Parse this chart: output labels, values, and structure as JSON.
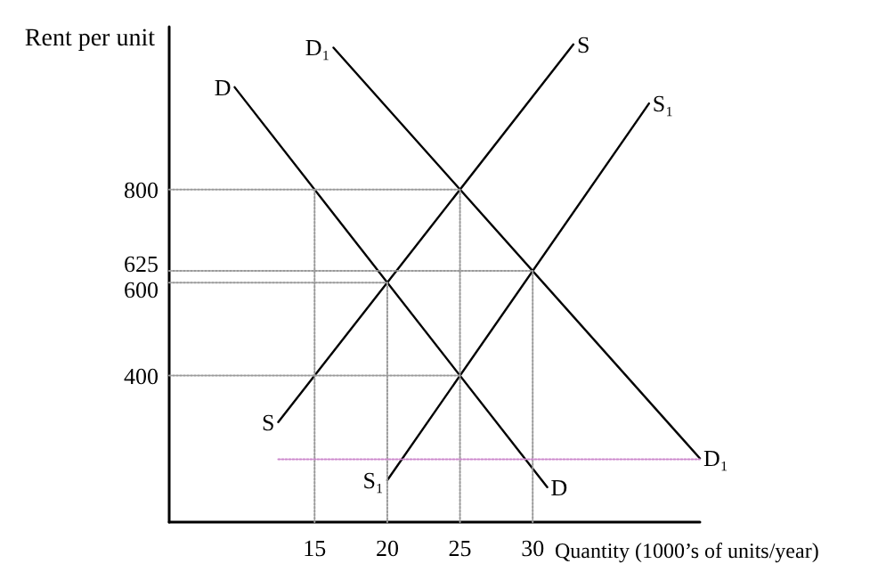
{
  "chart_data": {
    "type": "line",
    "xlabel": "Quantity (1000’s of units/year)",
    "ylabel": "Rent per unit",
    "xlim": [
      5,
      41.5
    ],
    "ylim": [
      85,
      1150
    ],
    "xticks": [
      15,
      20,
      25,
      30
    ],
    "yticks": [
      400,
      600,
      625,
      800
    ],
    "grid": false,
    "legend": false,
    "marker": "none",
    "line_style": "solid",
    "series": [
      {
        "name": "D",
        "color": "#000000",
        "x": [
          9.5,
          31
        ],
        "values": [
          1020,
          160
        ]
      },
      {
        "name": "D₁",
        "color": "#000000",
        "x": [
          16.3,
          41.5
        ],
        "values": [
          1105,
          222
        ]
      },
      {
        "name": "S",
        "color": "#000000",
        "x": [
          12.5,
          32.8
        ],
        "values": [
          300,
          1112
        ]
      },
      {
        "name": "S₁",
        "color": "#000000",
        "x": [
          20,
          38
        ],
        "values": [
          175,
          985
        ]
      },
      {
        "color": "#999999",
        "line_style": "dotted",
        "x": [
          5,
          25
        ],
        "values": [
          800,
          800
        ]
      },
      {
        "color": "#999999",
        "line_style": "dotted",
        "x": [
          15,
          15
        ],
        "values": [
          800,
          85
        ]
      },
      {
        "color": "#999999",
        "line_style": "dotted",
        "x": [
          25,
          25
        ],
        "values": [
          800,
          85
        ]
      },
      {
        "color": "#999999",
        "line_style": "dotted",
        "x": [
          5,
          30
        ],
        "values": [
          625,
          625
        ]
      },
      {
        "color": "#999999",
        "line_style": "dotted",
        "x": [
          30,
          30
        ],
        "values": [
          625,
          85
        ]
      },
      {
        "color": "#999999",
        "line_style": "dotted",
        "x": [
          5,
          20
        ],
        "values": [
          600,
          600
        ]
      },
      {
        "color": "#999999",
        "line_style": "dotted",
        "x": [
          20,
          20
        ],
        "values": [
          600,
          85
        ]
      },
      {
        "color": "#999999",
        "line_style": "dotted",
        "x": [
          5,
          25
        ],
        "values": [
          400,
          400
        ]
      },
      {
        "color": "#cc88cc",
        "line_style": "dotted",
        "x": [
          12.5,
          41.5
        ],
        "values": [
          220,
          220
        ]
      }
    ]
  }
}
